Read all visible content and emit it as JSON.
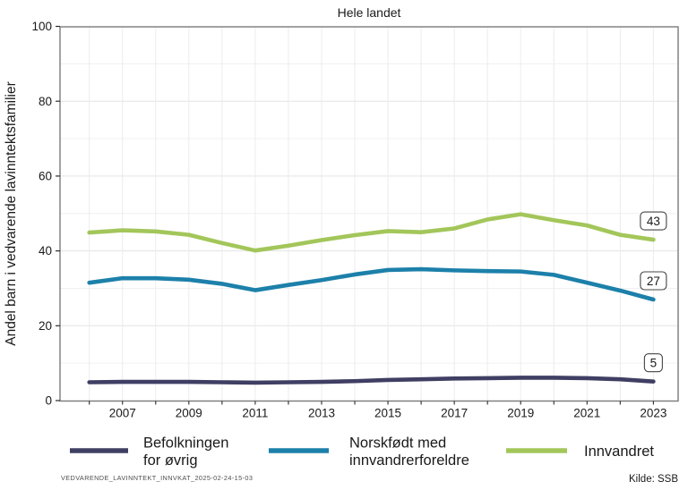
{
  "chart_data": {
    "type": "line",
    "title": "Hele landet",
    "ylabel": "Andel barn i vedvarende lavinntektsfamilier",
    "xlabel": "",
    "x": [
      2006,
      2007,
      2008,
      2009,
      2010,
      2011,
      2012,
      2013,
      2014,
      2015,
      2016,
      2017,
      2018,
      2019,
      2020,
      2021,
      2022,
      2023
    ],
    "xtick_labels": [
      "2007",
      "2009",
      "2011",
      "2013",
      "2015",
      "2017",
      "2019",
      "2021",
      "2023"
    ],
    "ytick_labels": [
      "0",
      "20",
      "40",
      "60",
      "80",
      "100"
    ],
    "ytick_values": [
      0,
      20,
      40,
      60,
      80,
      100
    ],
    "ylim": [
      0,
      100
    ],
    "grid": {
      "horizontal_minor_step": 10,
      "vertical_every_year": true
    },
    "legend_position": "bottom",
    "series": [
      {
        "name": "Befolkningen for øvrig",
        "legend_lines": [
          "Befolkningen",
          "for øvrig"
        ],
        "color": "#3f3e63",
        "end_label": "5",
        "values": [
          4.9,
          5.0,
          5.0,
          5.0,
          4.9,
          4.8,
          4.9,
          5.0,
          5.2,
          5.5,
          5.7,
          5.9,
          6.0,
          6.1,
          6.1,
          6.0,
          5.7,
          5.1
        ]
      },
      {
        "name": "Norskfødt med innvandrerforeldre",
        "legend_lines": [
          "Norskfødt med",
          "innvandrerforeldre"
        ],
        "color": "#1c80aa",
        "end_label": "27",
        "values": [
          31.5,
          32.7,
          32.7,
          32.3,
          31.2,
          29.5,
          30.9,
          32.2,
          33.7,
          34.9,
          35.1,
          34.8,
          34.6,
          34.5,
          33.6,
          31.5,
          29.4,
          27.0
        ]
      },
      {
        "name": "Innvandret",
        "legend_lines": [
          "Innvandret"
        ],
        "color": "#a3c65a",
        "end_label": "43",
        "values": [
          44.9,
          45.5,
          45.2,
          44.3,
          42.1,
          40.1,
          41.4,
          42.9,
          44.2,
          45.3,
          45.0,
          46.0,
          48.4,
          49.8,
          48.2,
          46.8,
          44.3,
          43.0
        ]
      }
    ]
  },
  "footer": {
    "stamp": "VEDVARENDE_LAVINNTEKT_INNVKAT_2025-02-24-15-03",
    "source": "Kilde: SSB"
  },
  "colors": {
    "text": "#1a1a1a",
    "stamp_text": "#4d4d4d",
    "plot_border": "#7a7a7a",
    "tick": "#2b2b2b",
    "grid_major": "#e3e3e3",
    "grid_minor": "#f0f0f0",
    "grid_vertical": "#ececec",
    "label_box_border": "#444444",
    "label_box_fill": "#ffffff"
  }
}
